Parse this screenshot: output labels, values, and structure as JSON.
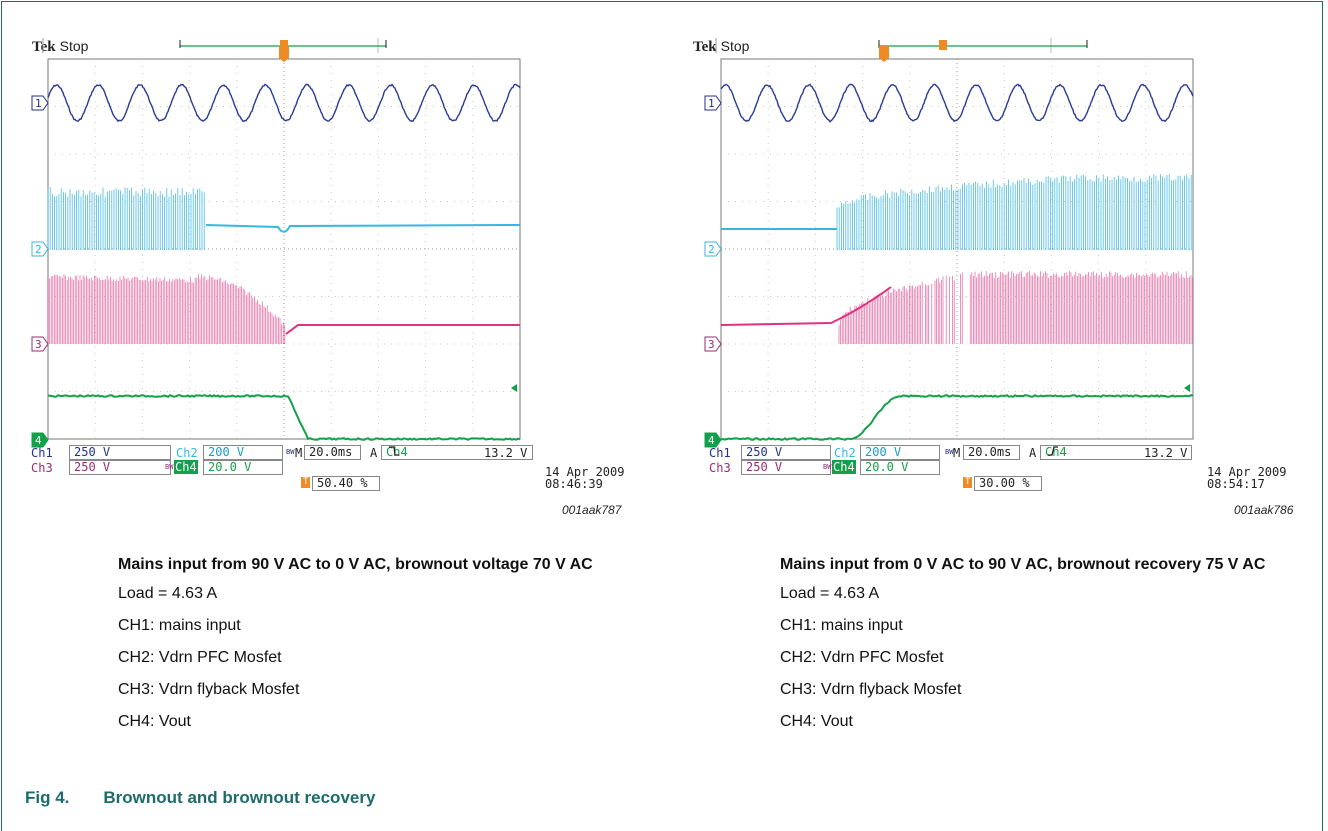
{
  "figure": {
    "number": "Fig 4.",
    "title": "Brownout and brownout recovery"
  },
  "colors": {
    "ch1": "#23318c",
    "ch2": "#35b6e5",
    "ch3": "#e0307e",
    "ch4": "#13a04a",
    "trigger": "#f08a24",
    "heading": "#1d6b6b"
  },
  "scopes": [
    {
      "brand": "Tek",
      "status": "Stop",
      "ch1_label": "Ch1",
      "ch1_scale": "250 V",
      "ch2_label": "Ch2",
      "ch2_scale": "200 V",
      "ch3_label": "Ch3",
      "ch3_scale": "250 V",
      "ch4_label": "Ch4",
      "ch4_scale": "20.0 V",
      "bw_mark": "BW",
      "timebase_prefix": "M",
      "timebase": "20.0ms",
      "trig_prefix": "A",
      "trig_source": "Ch4",
      "trig_slope": "falling",
      "trig_level": "13.2 V",
      "trig_position": "50.40 %",
      "date": "14 Apr 2009",
      "time": "08:46:39",
      "ref": "001aak787",
      "marker_1": "1",
      "marker_2": "2",
      "marker_3": "3",
      "marker_4": "4",
      "trigger_marker": "T"
    },
    {
      "brand": "Tek",
      "status": "Stop",
      "ch1_label": "Ch1",
      "ch1_scale": "250 V",
      "ch2_label": "Ch2",
      "ch2_scale": "200 V",
      "ch3_label": "Ch3",
      "ch3_scale": "250 V",
      "ch4_label": "Ch4",
      "ch4_scale": "20.0 V",
      "bw_mark": "BW",
      "timebase_prefix": "M",
      "timebase": "20.0ms",
      "trig_prefix": "A",
      "trig_source": "Ch4",
      "trig_slope": "rising",
      "trig_level": "13.2 V",
      "trig_position": "30.00 %",
      "date": "14 Apr 2009",
      "time": "08:54:17",
      "ref": "001aak786",
      "marker_1": "1",
      "marker_2": "2",
      "marker_3": "3",
      "marker_4": "4",
      "trigger_marker": "T"
    }
  ],
  "captions": [
    {
      "title": "Mains input from 90 V AC to 0 V AC, brownout voltage 70 V AC",
      "load": "Load = 4.63 A",
      "ch1": "CH1: mains input",
      "ch2": "CH2: Vdrn PFC Mosfet",
      "ch3": "CH3: Vdrn flyback Mosfet",
      "ch4": "CH4: Vout"
    },
    {
      "title": "Mains input from 0 V AC to 90 V AC, brownout recovery 75 V AC",
      "load": "Load = 4.63 A",
      "ch1": "CH1: mains input",
      "ch2": "CH2: Vdrn PFC Mosfet",
      "ch3": "CH3: Vdrn flyback Mosfet",
      "ch4": "CH4: Vout"
    }
  ]
}
